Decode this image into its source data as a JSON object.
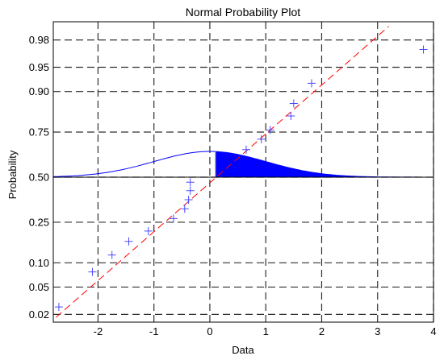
{
  "chart_data": {
    "type": "scatter",
    "title": "Normal Probability Plot",
    "xlabel": "Data",
    "ylabel": "Probability",
    "xlim": [
      -2.8,
      4.0
    ],
    "ylim_probability": [
      0.015,
      0.99
    ],
    "y_scale": "normal-probability",
    "grid": true,
    "x_ticks": [
      -2,
      -1,
      0,
      1,
      2,
      3,
      4
    ],
    "x_tick_labels": [
      "-2",
      "-1",
      "0",
      "1",
      "2",
      "3",
      "4"
    ],
    "y_ticks": [
      0.02,
      0.05,
      0.1,
      0.25,
      0.5,
      0.75,
      0.9,
      0.95,
      0.98
    ],
    "y_tick_labels": [
      "0.02",
      "0.05",
      "0.10",
      "0.25",
      "0.50",
      "0.75",
      "0.90",
      "0.95",
      "0.98"
    ],
    "series": [
      {
        "marker": "+",
        "color": "#4a4aff",
        "points": [
          {
            "x": -2.7,
            "p": 0.026
          },
          {
            "x": -2.1,
            "p": 0.078
          },
          {
            "x": -1.75,
            "p": 0.122
          },
          {
            "x": -1.45,
            "p": 0.168
          },
          {
            "x": -1.1,
            "p": 0.21
          },
          {
            "x": -0.65,
            "p": 0.268
          },
          {
            "x": -0.45,
            "p": 0.318
          },
          {
            "x": -0.38,
            "p": 0.368
          },
          {
            "x": -0.35,
            "p": 0.42
          },
          {
            "x": -0.35,
            "p": 0.47
          },
          {
            "x": 0.65,
            "p": 0.66
          },
          {
            "x": 0.92,
            "p": 0.715
          },
          {
            "x": 1.08,
            "p": 0.76
          },
          {
            "x": 1.45,
            "p": 0.82
          },
          {
            "x": 1.5,
            "p": 0.865
          },
          {
            "x": 1.82,
            "p": 0.92
          },
          {
            "x": 3.82,
            "p": 0.972
          }
        ]
      }
    ],
    "reference_line": {
      "style": "dashed",
      "color": "#ff0000",
      "from": {
        "x": -2.75,
        "p": 0.018
      },
      "to": {
        "x": 3.2,
        "p": 0.988
      }
    },
    "overlay_density": {
      "color": "#0000ff",
      "mean": 0,
      "sd": 1,
      "peak_probability": 0.65,
      "filled_from_x": 0.1,
      "filled_to_x": 2.7
    },
    "colors": {
      "grid": "#303030",
      "points": "#4a4aff",
      "reference": "#ff0000",
      "density": "#0000ff",
      "baseline": "#000000"
    }
  }
}
